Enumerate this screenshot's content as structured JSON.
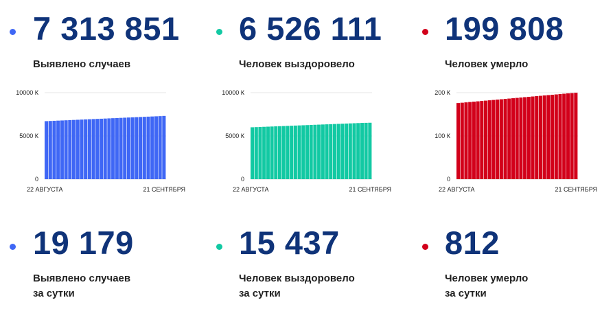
{
  "stats": [
    {
      "value": "7 313 851",
      "label": "Выявлено случаев",
      "color": "#3f67f5"
    },
    {
      "value": "6 526 111",
      "label": "Человек выздоровело",
      "color": "#12c9a3"
    },
    {
      "value": "199 808",
      "label": "Человек умерло",
      "color": "#d2001a"
    }
  ],
  "daily": [
    {
      "value": "19 179",
      "label1": "Выявлено случаев",
      "label2": "за сутки",
      "color": "#3f67f5"
    },
    {
      "value": "15 437",
      "label1": "Человек выздоровело",
      "label2": "за сутки",
      "color": "#12c9a3"
    },
    {
      "value": "812",
      "label1": "Человек умерло",
      "label2": "за сутки",
      "color": "#d2001a"
    }
  ],
  "chart_data": [
    {
      "type": "bar",
      "x_start_label": "22 АВГУСТА",
      "x_end_label": "21 СЕНТЯБРЯ",
      "y_ticks": [
        {
          "value": 0,
          "label": "0"
        },
        {
          "value": 5000,
          "label": "5000 К"
        },
        {
          "value": 10000,
          "label": "10000 К"
        }
      ],
      "ylim": [
        0,
        10000
      ],
      "unit": "thousand",
      "color": "#3f67f5",
      "values": [
        6710,
        6730,
        6750,
        6770,
        6790,
        6810,
        6830,
        6850,
        6870,
        6890,
        6910,
        6930,
        6950,
        6970,
        6990,
        7010,
        7030,
        7050,
        7070,
        7090,
        7110,
        7130,
        7150,
        7170,
        7190,
        7210,
        7230,
        7250,
        7270,
        7290,
        7314
      ]
    },
    {
      "type": "bar",
      "x_start_label": "22 АВГУСТА",
      "x_end_label": "21 СЕНТЯБРЯ",
      "y_ticks": [
        {
          "value": 0,
          "label": "0"
        },
        {
          "value": 5000,
          "label": "5000 К"
        },
        {
          "value": 10000,
          "label": "10000 К"
        }
      ],
      "ylim": [
        0,
        10000
      ],
      "unit": "thousand",
      "color": "#12c9a3",
      "values": [
        6000,
        6018,
        6036,
        6054,
        6072,
        6090,
        6108,
        6126,
        6144,
        6162,
        6180,
        6198,
        6216,
        6234,
        6252,
        6270,
        6288,
        6306,
        6324,
        6342,
        6360,
        6378,
        6396,
        6414,
        6432,
        6450,
        6468,
        6486,
        6504,
        6515,
        6526
      ]
    },
    {
      "type": "bar",
      "x_start_label": "22 АВГУСТА",
      "x_end_label": "21 СЕНТЯБРЯ",
      "y_ticks": [
        {
          "value": 0,
          "label": "0"
        },
        {
          "value": 100,
          "label": "100 К"
        },
        {
          "value": 200,
          "label": "200 К"
        }
      ],
      "ylim": [
        0,
        200
      ],
      "unit": "thousand",
      "color": "#d2001a",
      "values": [
        176.0,
        176.8,
        177.6,
        178.4,
        179.2,
        180.0,
        180.8,
        181.6,
        182.4,
        183.2,
        184.0,
        184.8,
        185.6,
        186.4,
        187.2,
        188.0,
        188.8,
        189.6,
        190.4,
        191.2,
        192.0,
        192.8,
        193.6,
        194.4,
        195.2,
        196.0,
        196.8,
        197.6,
        198.4,
        199.1,
        199.8
      ]
    }
  ]
}
